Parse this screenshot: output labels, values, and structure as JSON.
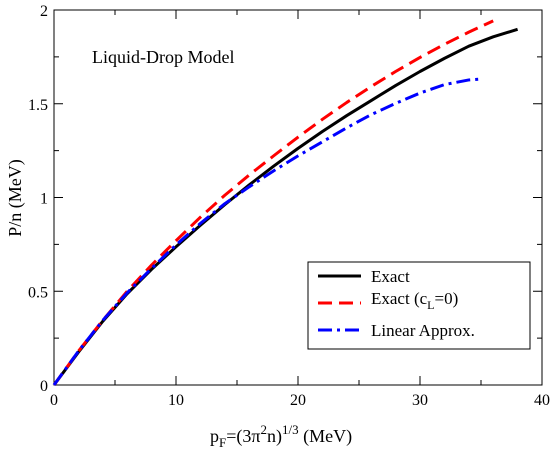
{
  "chart_data": {
    "type": "line",
    "title": "",
    "annotation": "Liquid-Drop Model",
    "xlabel": {
      "main": "p",
      "sub": "F",
      "mid": "=(3π",
      "sup": "2",
      "after": "n)",
      "sup2": "1/3",
      "tail": " (MeV)"
    },
    "ylabel": "P/n (MeV)",
    "xlim": [
      0,
      40
    ],
    "ylim": [
      0,
      2
    ],
    "xticks": [
      0,
      10,
      20,
      30,
      40
    ],
    "yticks": [
      0,
      0.5,
      1,
      1.5,
      2
    ],
    "xtick_labels": [
      "0",
      "10",
      "20",
      "30",
      "40"
    ],
    "ytick_labels": [
      "0",
      "0.5",
      "1",
      "1.5",
      "2"
    ],
    "legend_position": "bottom-right",
    "legend_entries": [
      {
        "main": "Exact",
        "sub": "",
        "tail": ""
      },
      {
        "main": "Exact (c",
        "sub": "L",
        "tail": "=0)"
      },
      {
        "main": "Linear Approx.",
        "sub": "",
        "tail": ""
      }
    ],
    "series": [
      {
        "style": "solid",
        "color": "#000000",
        "x": [
          0,
          2,
          4,
          6,
          8,
          10,
          12,
          14,
          16,
          18,
          20,
          22,
          24,
          26,
          28,
          30,
          32,
          34,
          36,
          38
        ],
        "y": [
          0,
          0.175,
          0.34,
          0.487,
          0.617,
          0.737,
          0.852,
          0.962,
          1.067,
          1.167,
          1.262,
          1.352,
          1.437,
          1.517,
          1.597,
          1.672,
          1.742,
          1.807,
          1.857,
          1.897
        ]
      },
      {
        "style": "dashed",
        "color": "#ff0000",
        "x": [
          0,
          2,
          4,
          6,
          8,
          10,
          12,
          14,
          16,
          18,
          20,
          22,
          24,
          26,
          28,
          30,
          32,
          34,
          36
        ],
        "y": [
          0,
          0.18,
          0.345,
          0.5,
          0.64,
          0.77,
          0.895,
          1.012,
          1.12,
          1.222,
          1.322,
          1.417,
          1.507,
          1.592,
          1.672,
          1.747,
          1.817,
          1.882,
          1.942
        ]
      },
      {
        "style": "dashdot",
        "color": "#0000ff",
        "x": [
          0,
          2,
          4,
          6,
          8,
          10,
          12,
          14,
          16,
          18,
          20,
          22,
          24,
          26,
          28,
          30,
          32,
          34,
          35
        ],
        "y": [
          0,
          0.18,
          0.345,
          0.492,
          0.622,
          0.747,
          0.862,
          0.967,
          1.057,
          1.142,
          1.222,
          1.297,
          1.372,
          1.442,
          1.502,
          1.557,
          1.602,
          1.627,
          1.632
        ]
      }
    ]
  }
}
